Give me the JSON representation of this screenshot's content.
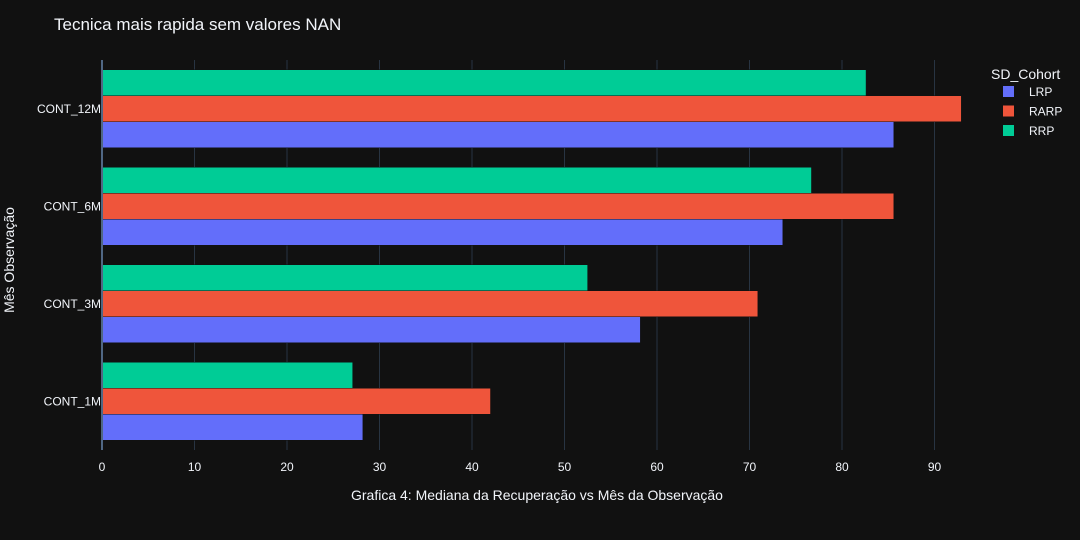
{
  "chart_data": {
    "type": "bar",
    "orientation": "horizontal",
    "title": "Tecnica mais rapida sem valores NAN",
    "xlabel": "Grafica 4: Mediana da Recuperação vs Mês da Observação",
    "ylabel": "Mês Observação",
    "categories": [
      "CONT_1M",
      "CONT_3M",
      "CONT_6M",
      "CONT_12M"
    ],
    "xlim": [
      0,
      96
    ],
    "xticks": [
      0,
      10,
      20,
      30,
      40,
      50,
      60,
      70,
      80,
      90
    ],
    "grid": true,
    "legend": {
      "title": "SD_Cohort",
      "placement": "top-right"
    },
    "series": [
      {
        "name": "LRP",
        "color": "#636efa",
        "values": [
          28.2,
          58.2,
          73.6,
          85.6
        ]
      },
      {
        "name": "RARP",
        "color": "#ef553b",
        "values": [
          42.0,
          70.9,
          85.6,
          92.9
        ]
      },
      {
        "name": "RRP",
        "color": "#00cc96",
        "values": [
          27.1,
          52.5,
          76.7,
          82.6
        ]
      }
    ]
  }
}
